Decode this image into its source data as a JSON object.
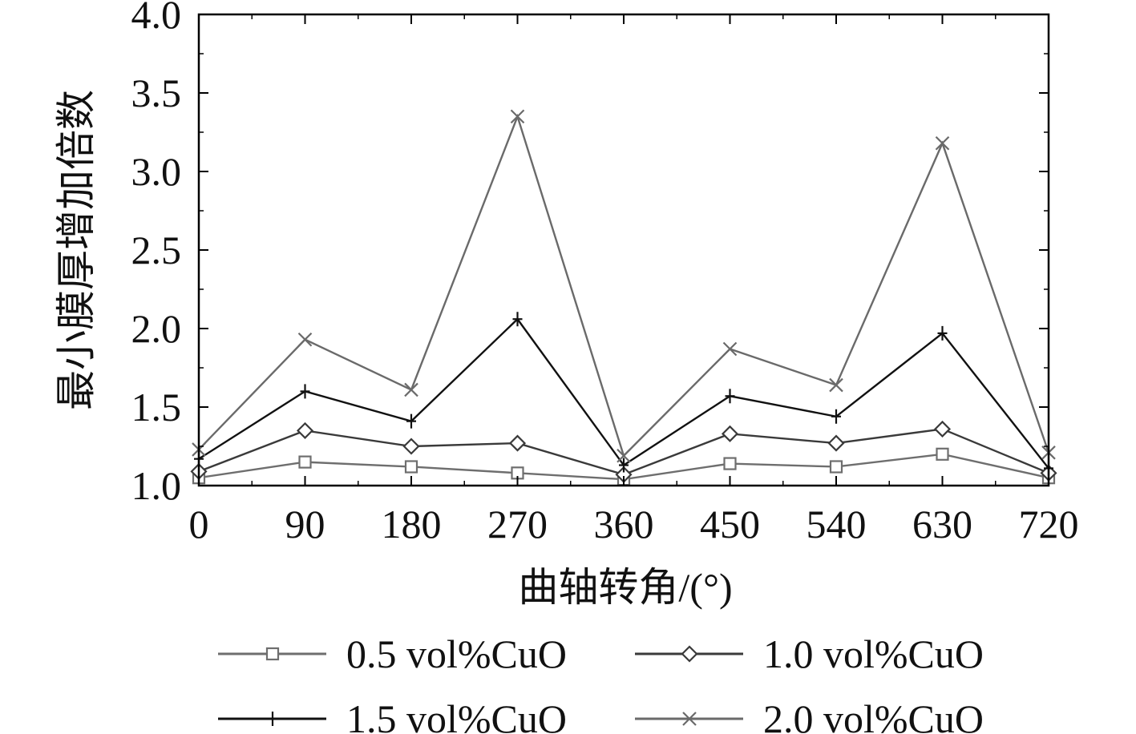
{
  "chart_data": {
    "type": "line",
    "title": "",
    "xlabel": "曲轴转角/(°)",
    "ylabel": "最小膜厚增加倍数",
    "x": [
      0,
      90,
      180,
      270,
      360,
      450,
      540,
      630,
      720
    ],
    "xticks": [
      "0",
      "90",
      "180",
      "270",
      "360",
      "450",
      "540",
      "630",
      "720"
    ],
    "yticks": [
      "1.0",
      "1.5",
      "2.0",
      "2.5",
      "3.0",
      "3.5",
      "4.0"
    ],
    "xlim": [
      0,
      720
    ],
    "ylim": [
      1.0,
      4.0
    ],
    "grid": false,
    "legend_position": "bottom",
    "series": [
      {
        "name": "0.5 vol%CuO",
        "marker": "square",
        "color": "#6e6e6e",
        "values": [
          1.05,
          1.15,
          1.12,
          1.08,
          1.04,
          1.14,
          1.12,
          1.2,
          1.05
        ]
      },
      {
        "name": "1.0 vol%CuO",
        "marker": "diamond",
        "color": "#3a3a3a",
        "values": [
          1.09,
          1.35,
          1.25,
          1.27,
          1.07,
          1.33,
          1.27,
          1.36,
          1.08
        ]
      },
      {
        "name": "1.5 vol%CuO",
        "marker": "plus",
        "color": "#111111",
        "values": [
          1.17,
          1.6,
          1.41,
          2.06,
          1.13,
          1.57,
          1.44,
          1.97,
          1.11
        ]
      },
      {
        "name": "2.0 vol%CuO",
        "marker": "cross",
        "color": "#6a6a6a",
        "values": [
          1.23,
          1.93,
          1.61,
          3.35,
          1.19,
          1.87,
          1.64,
          3.18,
          1.21
        ]
      }
    ]
  }
}
